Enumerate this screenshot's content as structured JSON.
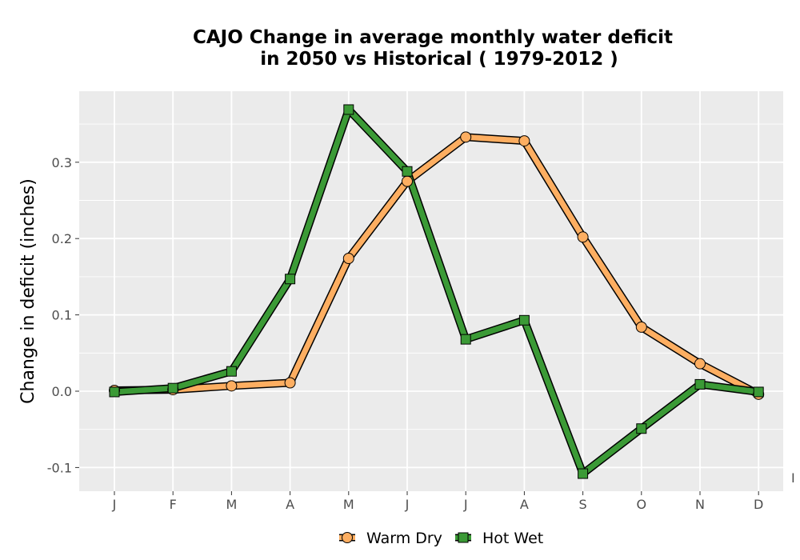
{
  "chart_data": {
    "type": "line",
    "title_line1": "CAJO  Change in average monthly water deficit",
    "title_line2": "in 2050 vs Historical ( 1979-2012 )",
    "xlabel": "",
    "ylabel": "Change in deficit (inches)",
    "categories": [
      "J",
      "F",
      "M",
      "A",
      "M",
      "J",
      "J",
      "A",
      "S",
      "O",
      "N",
      "D"
    ],
    "ylim": [
      -0.13,
      0.39
    ],
    "yticks": [
      -0.1,
      0.0,
      0.1,
      0.2,
      0.3
    ],
    "ytick_labels": [
      "-0.1",
      "0.0",
      "0.1",
      "0.2",
      "0.3"
    ],
    "grid": true,
    "legend_position": "bottom",
    "series": [
      {
        "name": "Warm Dry",
        "color": "#fdae61",
        "marker": "circle",
        "values": [
          0.001,
          0.002,
          0.007,
          0.011,
          0.174,
          0.275,
          0.333,
          0.328,
          0.202,
          0.084,
          0.036,
          -0.004
        ]
      },
      {
        "name": "Hot Wet",
        "color": "#3b9a36",
        "marker": "square",
        "values": [
          -0.001,
          0.004,
          0.026,
          0.147,
          0.369,
          0.288,
          0.068,
          0.093,
          -0.108,
          -0.049,
          0.009,
          -0.001
        ]
      }
    ],
    "annotation_glyph": "I"
  }
}
